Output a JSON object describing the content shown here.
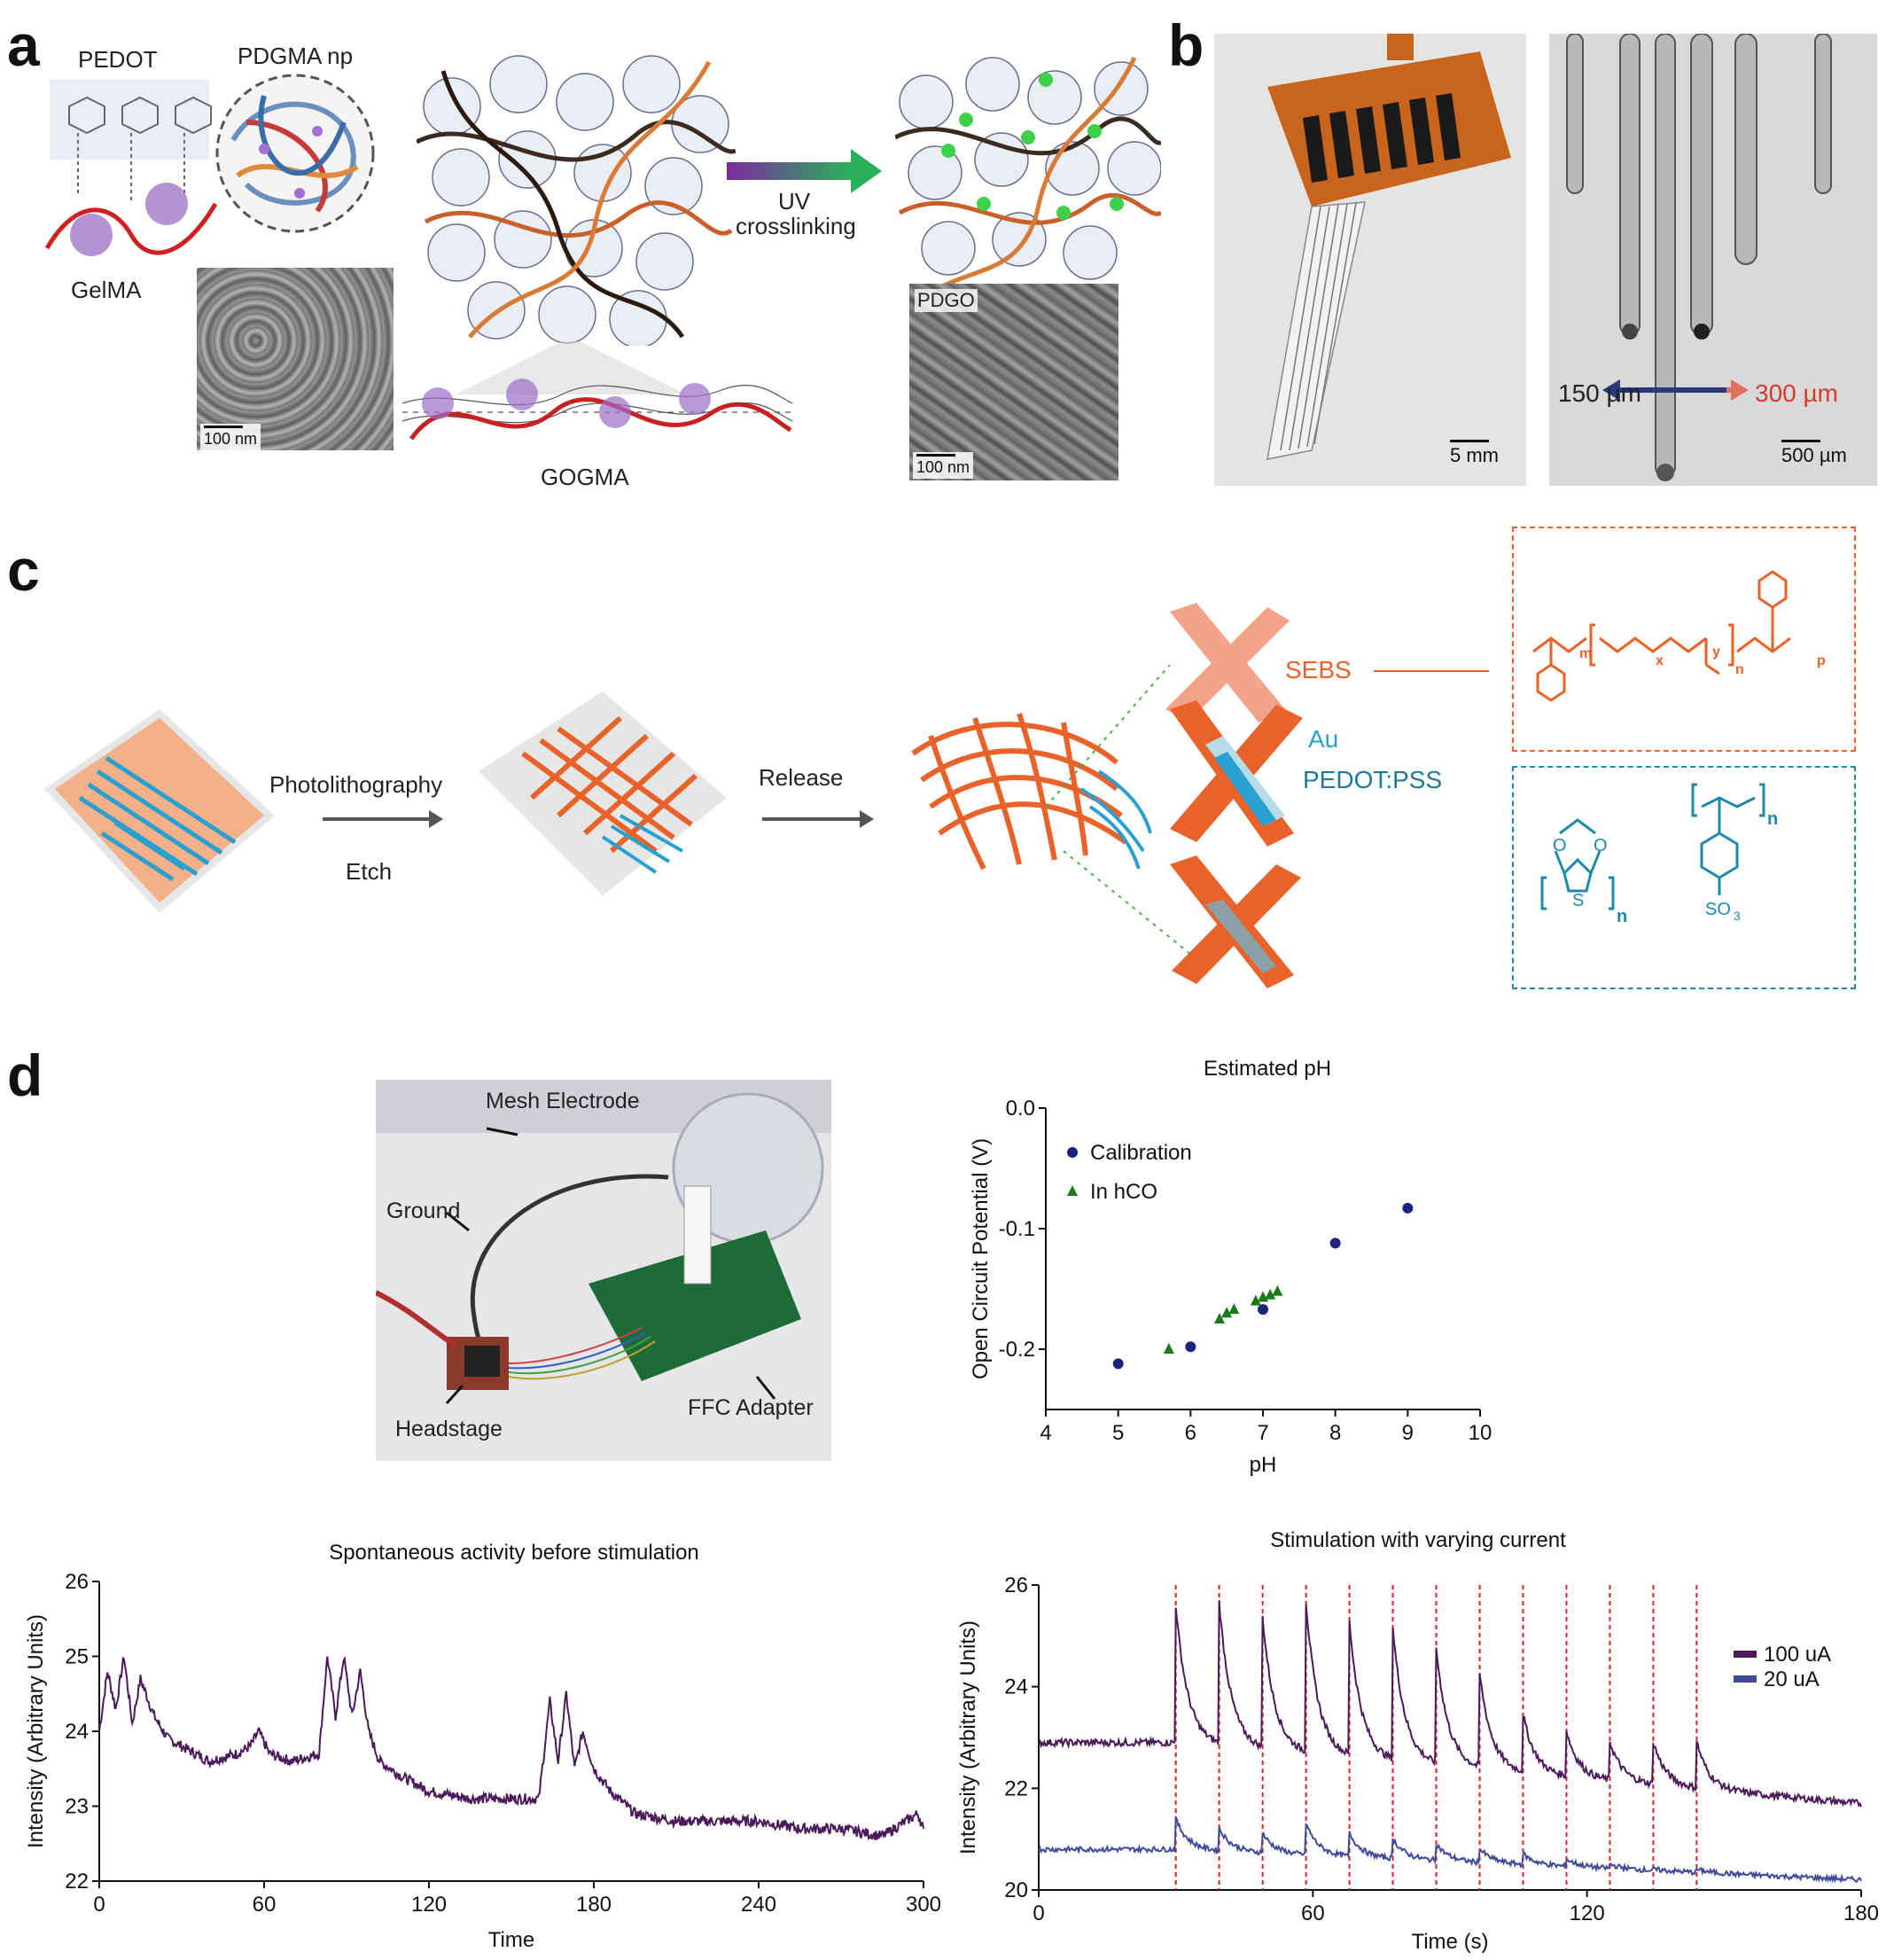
{
  "panels": {
    "a": "a",
    "b": "b",
    "c": "c",
    "d": "d"
  },
  "panel_a": {
    "pedot": "PEDOT",
    "pdgma_np": "PDGMA np",
    "gelma": "GelMA",
    "gogma": "GOGMA",
    "uv_line1": "UV",
    "uv_line2": "crosslinking",
    "pdgo": "PDGO",
    "scale_left": "100 nm",
    "scale_right": "100 nm"
  },
  "panel_b": {
    "scale_left": "5 mm",
    "dim_left": "150 µm",
    "dim_right": "300 µm",
    "scale_right": "500 µm"
  },
  "panel_c": {
    "step1": "Photolithography",
    "step1_sub": "Etch",
    "step2": "Release",
    "sebs": "SEBS",
    "au": "Au",
    "pedot_pss": "PEDOT:PSS",
    "formula_m": "m",
    "formula_x": "x",
    "formula_y": "y",
    "formula_n": "n",
    "formula_p": "p",
    "pedot_o1": "O",
    "pedot_o2": "O",
    "pedot_s": "S",
    "pedot_n": "n",
    "pss_n": "n",
    "pss_so3": "SO",
    "pss_sub3": "3"
  },
  "panel_d_photo": {
    "mesh": "Mesh Electrode",
    "ground": "Ground",
    "headstage": "Headstage",
    "ffc": "FFC Adapter"
  },
  "colors": {
    "sebs": "#e8622a",
    "pedot_pss": "#1f8aa8",
    "calib": "#1a237e",
    "hco": "#1b7a1b",
    "trace_100": "#4a1a5a",
    "trace_20": "#3f4b9a",
    "stim_line": "#e02020"
  },
  "chart_data": [
    {
      "type": "scatter",
      "title": "Estimated pH",
      "xlabel": "pH",
      "ylabel": "Open Circuit Potential (V)",
      "xlim": [
        4,
        10
      ],
      "ylim": [
        -0.25,
        0.0
      ],
      "xticks": [
        "4",
        "5",
        "6",
        "7",
        "8",
        "9",
        "10"
      ],
      "yticks": [
        "0.0",
        "-0.1",
        "-0.2"
      ],
      "legend_position": "top-left",
      "series": [
        {
          "name": "Calibration",
          "marker": "circle",
          "points": [
            [
              5,
              -0.212
            ],
            [
              6,
              -0.198
            ],
            [
              7,
              -0.167
            ],
            [
              8,
              -0.112
            ],
            [
              9,
              -0.083
            ]
          ]
        },
        {
          "name": "In hCO",
          "marker": "triangle",
          "points": [
            [
              5.7,
              -0.2
            ],
            [
              6.4,
              -0.175
            ],
            [
              6.5,
              -0.17
            ],
            [
              6.6,
              -0.167
            ],
            [
              6.9,
              -0.16
            ],
            [
              7.0,
              -0.157
            ],
            [
              7.1,
              -0.155
            ],
            [
              7.2,
              -0.152
            ]
          ]
        }
      ]
    },
    {
      "type": "line",
      "title": "Spontaneous activity before stimulation",
      "xlabel": "Time",
      "ylabel": "Intensity (Arbitrary Units)",
      "xlim": [
        0,
        300
      ],
      "ylim": [
        22,
        26
      ],
      "xticks": [
        "0",
        "60",
        "120",
        "180",
        "240",
        "300"
      ],
      "yticks": [
        "22",
        "23",
        "24",
        "25",
        "26"
      ],
      "series": [
        {
          "x": [
            0,
            3,
            6,
            9,
            12,
            15,
            20,
            25,
            30,
            40,
            50,
            55,
            58,
            62,
            70,
            80,
            83,
            86,
            89,
            92,
            95,
            98,
            102,
            110,
            120,
            135,
            150,
            160,
            164,
            167,
            170,
            173,
            176,
            180,
            186,
            195,
            210,
            225,
            240,
            255,
            270,
            285,
            298,
            300
          ],
          "y": [
            24.0,
            24.8,
            24.3,
            25.0,
            24.1,
            24.7,
            24.2,
            23.9,
            23.8,
            23.6,
            23.7,
            23.8,
            24.0,
            23.7,
            23.6,
            23.7,
            25.0,
            24.2,
            25.0,
            24.2,
            24.8,
            24.0,
            23.6,
            23.4,
            23.2,
            23.1,
            23.1,
            23.1,
            24.4,
            23.6,
            24.5,
            23.5,
            24.0,
            23.5,
            23.2,
            22.9,
            22.8,
            22.8,
            22.8,
            22.7,
            22.7,
            22.6,
            22.9,
            22.7
          ]
        }
      ]
    },
    {
      "type": "line",
      "title": "Stimulation with varying current",
      "xlabel": "Time (s)",
      "ylabel": "Intensity (Arbitrary Units)",
      "xlim": [
        0,
        180
      ],
      "ylim": [
        20,
        26
      ],
      "xticks": [
        "0",
        "60",
        "120",
        "180"
      ],
      "yticks": [
        "20",
        "22",
        "24",
        "26"
      ],
      "legend_position": "right",
      "stimulation_times": [
        30,
        39.5,
        49,
        58.5,
        68,
        77.5,
        87,
        96.5,
        106,
        115.5,
        125,
        134.5,
        144
      ],
      "series": [
        {
          "name": "100 uA",
          "baseline_start": 22.9,
          "baseline_end": 21.7,
          "peaks": [
            25.6,
            25.6,
            25.3,
            25.6,
            25.2,
            25.1,
            24.7,
            24.2,
            23.4,
            23.1,
            22.9,
            22.9,
            22.9
          ]
        },
        {
          "name": "20 uA",
          "baseline_start": 20.8,
          "baseline_end": 20.2,
          "peaks": [
            21.4,
            21.2,
            21.1,
            21.3,
            21.1,
            21.0,
            20.9,
            20.8,
            20.7,
            20.6,
            20.5,
            20.4,
            20.4
          ]
        }
      ]
    }
  ]
}
